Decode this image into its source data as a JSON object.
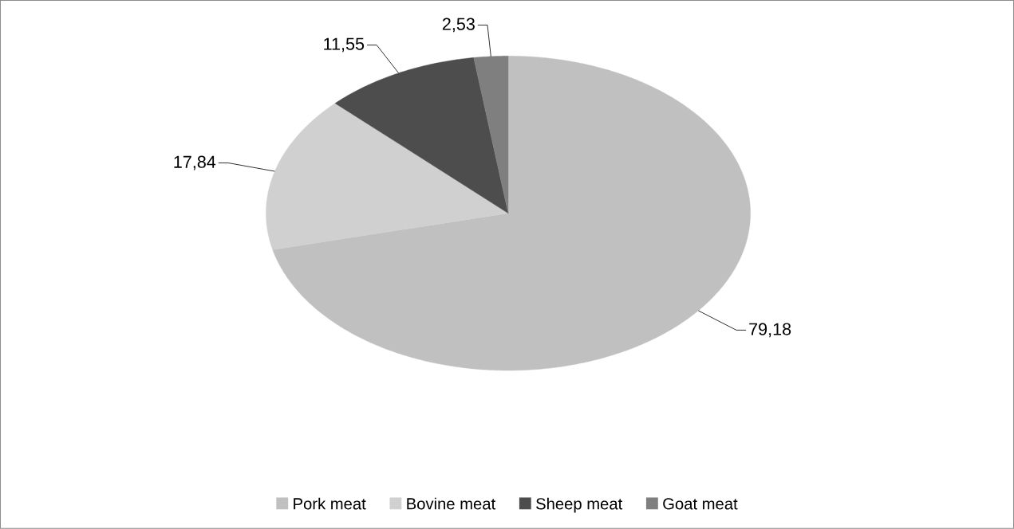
{
  "chart_data": {
    "type": "pie",
    "categories": [
      "Pork meat",
      "Bovine meat",
      "Sheep meat",
      "Goat meat"
    ],
    "values": [
      79.18,
      17.84,
      11.55,
      2.53
    ],
    "value_labels": [
      "79,18",
      "17,84",
      "11,55",
      "2,53"
    ],
    "colors": [
      "#c0c0c0",
      "#d0d0d0",
      "#4d4d4d",
      "#7f7f7f"
    ],
    "legend": "bottom"
  }
}
